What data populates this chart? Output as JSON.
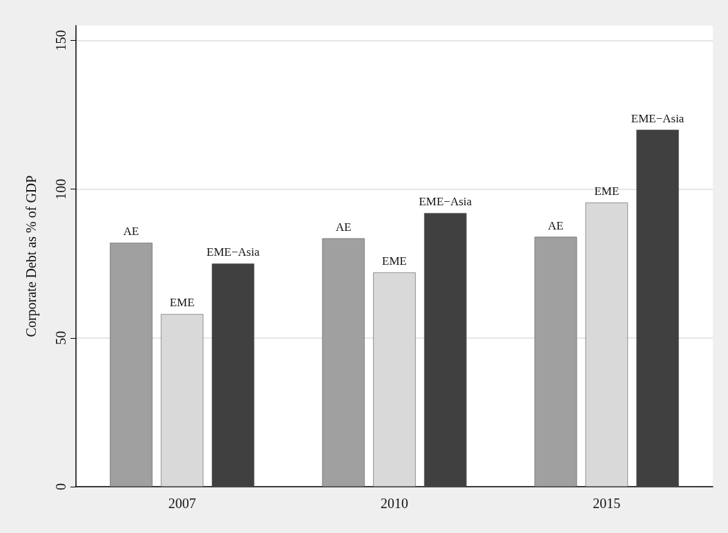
{
  "chart_data": {
    "type": "bar",
    "ylabel": "Corporate Debt as % of GDP",
    "categories": [
      "2007",
      "2010",
      "2015"
    ],
    "series": [
      {
        "name": "AE",
        "color": "#a0a0a0",
        "values": [
          82,
          83.5,
          84
        ]
      },
      {
        "name": "EME",
        "color": "#d9d9d9",
        "values": [
          58,
          72,
          95.5
        ]
      },
      {
        "name": "EME−Asia",
        "color": "#404040",
        "values": [
          75,
          92,
          120
        ]
      }
    ],
    "ylim": [
      0,
      155
    ],
    "yticks": [
      0,
      50,
      100,
      150
    ],
    "grid": "y",
    "legend": false
  }
}
